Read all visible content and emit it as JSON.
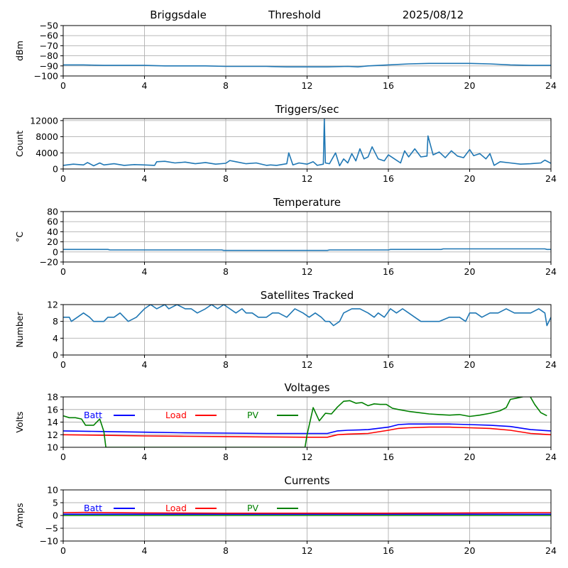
{
  "header": {
    "station": "Briggsdale",
    "mode": "Threshold",
    "date": "2025/08/12"
  },
  "chart_data": [
    {
      "type": "line",
      "id": "signal",
      "title": "",
      "ylabel": "dBm",
      "xlim": [
        0,
        24
      ],
      "xticks": [
        0,
        4,
        8,
        12,
        16,
        20,
        24
      ],
      "ylim": [
        -100,
        -50
      ],
      "yticks": [
        -100,
        -90,
        -80,
        -70,
        -60,
        -50
      ],
      "grid": true,
      "series": [
        {
          "color": "#1f77b4",
          "x": [
            0,
            0.5,
            1,
            2,
            3,
            4,
            5,
            6,
            7,
            8,
            9,
            10,
            11,
            12,
            13,
            14,
            14.5,
            15,
            16,
            17,
            18,
            19,
            20,
            21,
            22,
            23,
            24
          ],
          "y": [
            -89,
            -89,
            -89,
            -89.5,
            -89.5,
            -89.5,
            -90,
            -90,
            -90,
            -90.5,
            -90.5,
            -90.5,
            -91,
            -91,
            -91,
            -90.5,
            -91,
            -90,
            -89,
            -88,
            -87.5,
            -87.5,
            -87.5,
            -88,
            -89,
            -89.5,
            -89.5
          ]
        }
      ]
    },
    {
      "type": "line",
      "id": "triggers",
      "title": "Triggers/sec",
      "ylabel": "Count",
      "xlim": [
        0,
        24
      ],
      "xticks": [
        0,
        4,
        8,
        12,
        16,
        20,
        24
      ],
      "ylim": [
        0,
        12500
      ],
      "yticks": [
        0,
        4000,
        8000,
        12000
      ],
      "grid": true,
      "series": [
        {
          "color": "#1f77b4",
          "x": [
            0,
            0.5,
            1,
            1.2,
            1.5,
            1.8,
            2,
            2.5,
            3,
            3.5,
            4,
            4.5,
            4.6,
            5,
            5.5,
            6,
            6.5,
            7,
            7.5,
            8,
            8.2,
            8.5,
            9,
            9.5,
            10,
            10.2,
            10.5,
            11,
            11.1,
            11.3,
            11.6,
            12,
            12.3,
            12.5,
            12.8,
            12.85,
            12.9,
            13.1,
            13.4,
            13.6,
            13.8,
            14.0,
            14.2,
            14.4,
            14.6,
            14.8,
            15.0,
            15.2,
            15.5,
            15.8,
            16.0,
            16.3,
            16.6,
            16.8,
            17.0,
            17.3,
            17.6,
            17.9,
            17.95,
            18.2,
            18.5,
            18.8,
            19.1,
            19.4,
            19.7,
            20.0,
            20.2,
            20.5,
            20.8,
            21.0,
            21.2,
            21.5,
            22,
            22.5,
            23,
            23.5,
            23.7,
            24
          ],
          "y": [
            900,
            1200,
            1000,
            1600,
            800,
            1500,
            1000,
            1300,
            900,
            1100,
            1000,
            900,
            1800,
            1900,
            1500,
            1700,
            1300,
            1600,
            1200,
            1400,
            2100,
            1800,
            1300,
            1500,
            900,
            1000,
            900,
            1300,
            4000,
            1000,
            1500,
            1200,
            1800,
            900,
            1200,
            12500,
            1500,
            1300,
            4000,
            800,
            2500,
            1500,
            3800,
            2000,
            5000,
            2500,
            3000,
            5500,
            2500,
            2000,
            3500,
            2500,
            1500,
            4500,
            3000,
            5000,
            3000,
            3200,
            8200,
            3500,
            4200,
            2800,
            4500,
            3200,
            2800,
            4800,
            3300,
            3800,
            2500,
            3800,
            900,
            1800,
            1500,
            1200,
            1300,
            1500,
            2200,
            1400
          ]
        }
      ]
    },
    {
      "type": "line",
      "id": "temperature",
      "title": "Temperature",
      "ylabel": "°C",
      "xlim": [
        0,
        24
      ],
      "xticks": [
        0,
        4,
        8,
        12,
        16,
        20,
        24
      ],
      "ylim": [
        -20,
        80
      ],
      "yticks": [
        -20,
        0,
        20,
        40,
        60,
        80
      ],
      "grid": true,
      "series": [
        {
          "color": "#1f77b4",
          "x": [
            0,
            2.2,
            2.3,
            7.8,
            7.9,
            13,
            13.1,
            16,
            16.1,
            18.6,
            18.7,
            23.7,
            23.8,
            24
          ],
          "y": [
            5,
            5,
            4,
            4,
            3,
            3,
            4,
            4,
            5,
            5,
            6,
            6,
            5,
            5
          ]
        }
      ]
    },
    {
      "type": "line",
      "id": "satellites",
      "title": "Satellites Tracked",
      "ylabel": "Number",
      "xlim": [
        0,
        24
      ],
      "xticks": [
        0,
        4,
        8,
        12,
        16,
        20,
        24
      ],
      "ylim": [
        0,
        12
      ],
      "yticks": [
        0,
        4,
        8,
        12
      ],
      "grid": true,
      "series": [
        {
          "color": "#1f77b4",
          "x": [
            0,
            0.3,
            0.4,
            0.7,
            1.0,
            1.3,
            1.5,
            2.0,
            2.2,
            2.5,
            2.8,
            3.2,
            3.6,
            3.8,
            4.0,
            4.3,
            4.6,
            5.0,
            5.2,
            5.6,
            6.0,
            6.3,
            6.6,
            7.0,
            7.3,
            7.6,
            7.9,
            8.2,
            8.5,
            8.8,
            9.0,
            9.3,
            9.6,
            10.0,
            10.3,
            10.6,
            11.0,
            11.4,
            11.8,
            12.1,
            12.4,
            12.7,
            12.9,
            13.1,
            13.3,
            13.6,
            13.8,
            14.2,
            14.6,
            15.0,
            15.3,
            15.5,
            15.8,
            16.1,
            16.4,
            16.7,
            17.0,
            17.3,
            17.6,
            18.0,
            18.5,
            19.0,
            19.5,
            19.8,
            20.0,
            20.3,
            20.6,
            21.0,
            21.4,
            21.8,
            22.2,
            22.6,
            23.0,
            23.4,
            23.7,
            23.8,
            24
          ],
          "y": [
            9,
            9,
            8,
            9,
            10,
            9,
            8,
            8,
            9,
            9,
            10,
            8,
            9,
            10,
            11,
            12,
            11,
            12,
            11,
            12,
            11,
            11,
            10,
            11,
            12,
            11,
            12,
            11,
            10,
            11,
            10,
            10,
            9,
            9,
            10,
            10,
            9,
            11,
            10,
            9,
            10,
            9,
            8,
            8,
            7,
            8,
            10,
            11,
            11,
            10,
            9,
            10,
            9,
            11,
            10,
            11,
            10,
            9,
            8,
            8,
            8,
            9,
            9,
            8,
            10,
            10,
            9,
            10,
            10,
            11,
            10,
            10,
            10,
            11,
            10,
            7,
            9
          ]
        }
      ]
    },
    {
      "type": "line",
      "id": "voltages",
      "title": "Voltages",
      "ylabel": "Volts",
      "xlim": [
        0,
        24
      ],
      "xticks": [
        0,
        4,
        8,
        12,
        16,
        20,
        24
      ],
      "ylim": [
        10,
        18
      ],
      "yticks": [
        10,
        12,
        14,
        16,
        18
      ],
      "grid": true,
      "legend": {
        "placement": "top-left",
        "orientation": "horizontal"
      },
      "series": [
        {
          "name": "Batt",
          "color": "#0000ff",
          "x": [
            0,
            2,
            4,
            6,
            8,
            10,
            12,
            13,
            13.5,
            14,
            15,
            16,
            16.5,
            17,
            18,
            19,
            20,
            21,
            22,
            23,
            24
          ],
          "y": [
            12.6,
            12.5,
            12.4,
            12.3,
            12.25,
            12.2,
            12.2,
            12.2,
            12.6,
            12.7,
            12.8,
            13.2,
            13.6,
            13.7,
            13.7,
            13.7,
            13.6,
            13.5,
            13.3,
            12.8,
            12.6
          ]
        },
        {
          "name": "Load",
          "color": "#ff0000",
          "x": [
            0,
            2,
            4,
            6,
            8,
            10,
            12,
            13,
            13.5,
            14,
            15,
            16,
            16.5,
            17,
            18,
            19,
            20,
            21,
            22,
            23,
            24
          ],
          "y": [
            12.0,
            11.9,
            11.8,
            11.75,
            11.7,
            11.65,
            11.6,
            11.6,
            12.0,
            12.1,
            12.2,
            12.7,
            13.0,
            13.1,
            13.2,
            13.2,
            13.1,
            13.0,
            12.7,
            12.2,
            12.0
          ]
        },
        {
          "name": "PV",
          "color": "#008000",
          "x": [
            0,
            0.3,
            0.6,
            0.9,
            1.1,
            1.5,
            1.8,
            2.0,
            2.1,
            11.9,
            12.0,
            12.3,
            12.6,
            12.9,
            13.2,
            13.5,
            13.8,
            14.1,
            14.4,
            14.7,
            15.0,
            15.3,
            15.6,
            15.9,
            16.2,
            16.5,
            17.0,
            17.5,
            18.0,
            18.5,
            19.0,
            19.5,
            20.0,
            20.5,
            21.0,
            21.5,
            21.8,
            22.0,
            22.3,
            22.6,
            22.9,
            23.2,
            23.5,
            23.8
          ],
          "y": [
            15.0,
            14.7,
            14.7,
            14.5,
            13.5,
            13.5,
            14.5,
            12.5,
            10.0,
            10.0,
            12.0,
            16.3,
            14.2,
            15.4,
            15.3,
            16.4,
            17.3,
            17.4,
            17.0,
            17.1,
            16.6,
            16.9,
            16.8,
            16.8,
            16.2,
            16.0,
            15.7,
            15.5,
            15.3,
            15.2,
            15.1,
            15.2,
            14.9,
            15.1,
            15.4,
            15.8,
            16.3,
            17.6,
            17.8,
            18.0,
            18.5,
            16.8,
            15.5,
            15.0
          ]
        }
      ]
    },
    {
      "type": "line",
      "id": "currents",
      "title": "Currents",
      "ylabel": "Amps",
      "xlim": [
        0,
        24
      ],
      "xticks": [
        0,
        4,
        8,
        12,
        16,
        20,
        24
      ],
      "ylim": [
        -10,
        10
      ],
      "yticks": [
        -10,
        -5,
        0,
        5,
        10
      ],
      "grid": true,
      "legend": {
        "placement": "top-left",
        "orientation": "horizontal"
      },
      "series": [
        {
          "name": "Batt",
          "color": "#0000ff",
          "x": [
            0,
            4,
            8,
            12,
            16,
            20,
            24
          ],
          "y": [
            0.5,
            0.5,
            0.5,
            0.5,
            0.5,
            0.5,
            0.5
          ]
        },
        {
          "name": "Load",
          "color": "#ff0000",
          "x": [
            0,
            1,
            4,
            8,
            12,
            16,
            20,
            23,
            24
          ],
          "y": [
            1.1,
            1.2,
            1.0,
            0.9,
            0.9,
            0.9,
            1.0,
            1.1,
            1.1
          ]
        },
        {
          "name": "PV",
          "color": "#008000",
          "x": [
            0,
            4,
            8,
            12,
            16,
            20,
            24
          ],
          "y": [
            0,
            0,
            0,
            0,
            0,
            0,
            0
          ]
        }
      ]
    }
  ]
}
